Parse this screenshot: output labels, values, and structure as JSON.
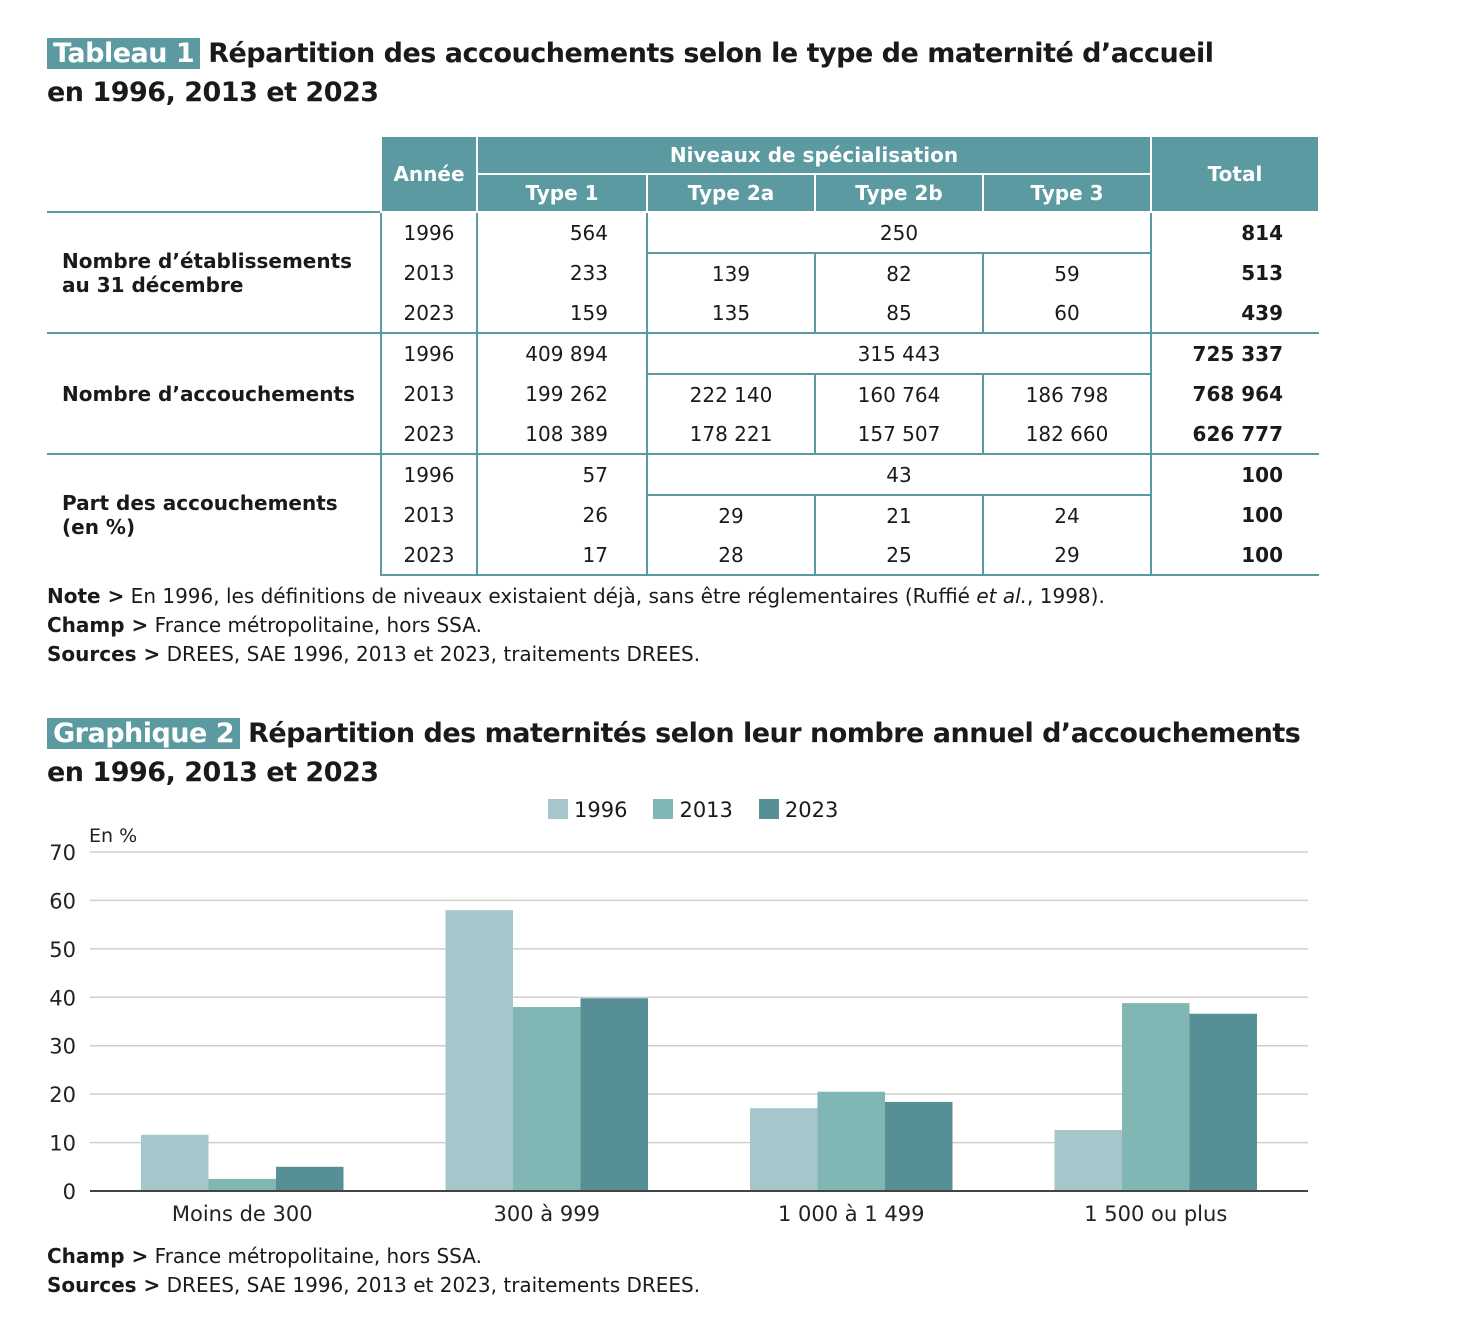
{
  "table1": {
    "tag": "Tableau 1",
    "title": "Répartition des accouchements selon le type de maternité d’accueil",
    "title_line2": "en 1996, 2013 et 2023",
    "headers": {
      "annee": "Année",
      "niveaux": "Niveaux de spécialisation",
      "type1": "Type 1",
      "type2a": "Type 2a",
      "type2b": "Type 2b",
      "type3": "Type 3",
      "total": "Total"
    },
    "groups": [
      {
        "label": "Nombre d’établissements au 31 décembre",
        "rows": [
          {
            "year": "1996",
            "type1": "564",
            "merged": "250",
            "total": "814"
          },
          {
            "year": "2013",
            "type1": "233",
            "type2a": "139",
            "type2b": "82",
            "type3": "59",
            "total": "513"
          },
          {
            "year": "2023",
            "type1": "159",
            "type2a": "135",
            "type2b": "85",
            "type3": "60",
            "total": "439"
          }
        ]
      },
      {
        "label": "Nombre d’accouchements",
        "rows": [
          {
            "year": "1996",
            "type1": "409 894",
            "merged": "315 443",
            "total": "725 337"
          },
          {
            "year": "2013",
            "type1": "199 262",
            "type2a": "222 140",
            "type2b": "160 764",
            "type3": "186 798",
            "total": "768 964"
          },
          {
            "year": "2023",
            "type1": "108 389",
            "type2a": "178 221",
            "type2b": "157 507",
            "type3": "182 660",
            "total": "626 777"
          }
        ]
      },
      {
        "label": "Part des accouchements (en %)",
        "rows": [
          {
            "year": "1996",
            "type1": "57",
            "merged": "43",
            "total": "100"
          },
          {
            "year": "2013",
            "type1": "26",
            "type2a": "29",
            "type2b": "21",
            "type3": "24",
            "total": "100"
          },
          {
            "year": "2023",
            "type1": "17",
            "type2a": "28",
            "type2b": "25",
            "type3": "29",
            "total": "100"
          }
        ]
      }
    ],
    "note_label": "Note >",
    "note": " En 1996, les définitions de niveaux existaient déjà, sans être réglementaires (Ruffié ",
    "note_italic": "et al.",
    "note_end": ", 1998).",
    "champ_label": "Champ >",
    "champ": " France métropolitaine, hors SSA.",
    "sources_label": "Sources >",
    "sources": " DREES, SAE 1996, 2013 et 2023, traitements DREES."
  },
  "graph2": {
    "tag": "Graphique 2",
    "title": "Répartition des maternités selon leur nombre annuel d’accouchements",
    "title_line2": "en 1996, 2013 et 2023",
    "champ_label": "Champ >",
    "champ": " France métropolitaine, hors SSA.",
    "sources_label": "Sources >",
    "sources": " DREES, SAE 1996, 2013 et 2023, traitements DREES."
  },
  "chart_data": {
    "type": "bar",
    "ylabel": "En %",
    "ylim": [
      0,
      70
    ],
    "yticks": [
      0,
      10,
      20,
      30,
      40,
      50,
      60,
      70
    ],
    "grid": true,
    "legend_position": "top",
    "categories": [
      "Moins de 300",
      "300 à 999",
      "1 000 à 1 499",
      "1 500 ou plus"
    ],
    "series": [
      {
        "name": "1996",
        "color": "#a5c7cc",
        "values": [
          11.6,
          58,
          17.1,
          12.6
        ]
      },
      {
        "name": "2013",
        "color": "#80b7b5",
        "values": [
          2.5,
          38,
          20.5,
          38.8
        ]
      },
      {
        "name": "2023",
        "color": "#568f96",
        "values": [
          5.0,
          39.8,
          18.4,
          36.6
        ]
      }
    ]
  }
}
